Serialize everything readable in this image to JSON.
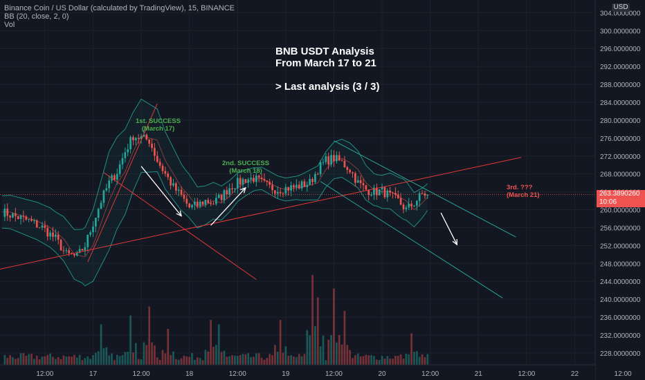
{
  "legend": {
    "line1": "Binance Coin / US Dollar (calculated by TradingView), 15, BINANCE",
    "line2": "BB (20, close, 2, 0)",
    "line3": "Vol"
  },
  "title": {
    "line1": "BNB USDT Analysis",
    "line2": "From March 17 to 21",
    "line3": "> Last analysis (3 / 3)"
  },
  "annotations": {
    "first_line1": "1st. SUCCESS",
    "first_line2": "(March 17)",
    "second_line1": "2nd. SUCCESS",
    "second_line2": "(March 18)",
    "third_line1": "3rd. ???",
    "third_line2": "(March 21)"
  },
  "price_axis": {
    "currency": "USD",
    "current_price": "263.3890260",
    "countdown": "10:06"
  },
  "colors": {
    "background": "#131722",
    "up": "#26a69a",
    "down": "#ef5350",
    "bollinger": "#1f8f85",
    "trendline": "#e53935",
    "channel": "#26a69a",
    "success_text": "#4caf50",
    "arrow": "#ffffff"
  },
  "chart_data": {
    "type": "candlestick",
    "series": [
      {
        "name": "BB (20, close, 2, 0)"
      },
      {
        "name": "Vol"
      }
    ],
    "y_ticks": [
      "304.0000000",
      "300.0000000",
      "296.0000000",
      "292.0000000",
      "288.0000000",
      "284.0000000",
      "280.0000000",
      "276.0000000",
      "272.0000000",
      "268.0000000",
      "264.0000000",
      "260.0000000",
      "256.0000000",
      "252.0000000",
      "248.0000000",
      "244.0000000",
      "240.0000000",
      "236.0000000",
      "232.0000000",
      "228.0000000"
    ],
    "x_ticks": [
      "12:00",
      "17",
      "12:00",
      "18",
      "12:00",
      "19",
      "12:00",
      "20",
      "12:00",
      "21",
      "12:00",
      "22",
      "12:00"
    ],
    "ylim": [
      226.5,
      305.5
    ],
    "price_path": [
      [
        0,
        259.5
      ],
      [
        5,
        258.5
      ],
      [
        10,
        257.5
      ],
      [
        15,
        256
      ],
      [
        20,
        253.5
      ],
      [
        24,
        250
      ],
      [
        28,
        249.5
      ],
      [
        31,
        252
      ],
      [
        34,
        257
      ],
      [
        37,
        262
      ],
      [
        40,
        266
      ],
      [
        43,
        268.5
      ],
      [
        46,
        273
      ],
      [
        49,
        276.5
      ],
      [
        52,
        276
      ],
      [
        55,
        275.5
      ],
      [
        58,
        271
      ],
      [
        61,
        268
      ],
      [
        64,
        265
      ],
      [
        67,
        263
      ],
      [
        70,
        260.5
      ],
      [
        73,
        261
      ],
      [
        76,
        262
      ],
      [
        79,
        261.5
      ],
      [
        82,
        263
      ],
      [
        85,
        265
      ],
      [
        88,
        266
      ],
      [
        91,
        266.8
      ],
      [
        94,
        267
      ],
      [
        97,
        266
      ],
      [
        100,
        265
      ],
      [
        103,
        264.5
      ],
      [
        106,
        264.8
      ],
      [
        109,
        265
      ],
      [
        112,
        265.5
      ],
      [
        115,
        266
      ],
      [
        118,
        269
      ],
      [
        121,
        271
      ],
      [
        124,
        271.5
      ],
      [
        127,
        270.5
      ],
      [
        130,
        269
      ],
      [
        133,
        266
      ],
      [
        136,
        264.5
      ],
      [
        139,
        264
      ],
      [
        142,
        264.2
      ],
      [
        145,
        263
      ],
      [
        148,
        262
      ],
      [
        151,
        260
      ],
      [
        154,
        261.5
      ],
      [
        157,
        263.5
      ],
      [
        159,
        263.39
      ]
    ],
    "candles_per_day": 36,
    "last_candle_index": 159,
    "bb_half_width": [
      [
        0,
        3.6
      ],
      [
        20,
        4.5
      ],
      [
        30,
        6
      ],
      [
        40,
        11
      ],
      [
        48,
        9
      ],
      [
        58,
        7
      ],
      [
        68,
        5
      ],
      [
        80,
        4
      ],
      [
        95,
        2.5
      ],
      [
        110,
        2.6
      ],
      [
        118,
        3.8
      ],
      [
        130,
        4.4
      ],
      [
        140,
        3.5
      ],
      [
        150,
        4.5
      ],
      [
        159,
        3
      ]
    ],
    "volume_spikes": [
      [
        37,
        0.45
      ],
      [
        48,
        0.55
      ],
      [
        55,
        0.65
      ],
      [
        62,
        0.4
      ],
      [
        78,
        0.5
      ],
      [
        81,
        0.45
      ],
      [
        104,
        0.5
      ],
      [
        116,
        1.0
      ],
      [
        118,
        0.75
      ],
      [
        124,
        0.85
      ],
      [
        128,
        0.6
      ],
      [
        153,
        0.35
      ]
    ],
    "trendlines": [
      {
        "name": "support",
        "from": [
          -1,
          246.7
        ],
        "to": [
          194,
          271.7
        ]
      },
      {
        "name": "rally",
        "from": [
          32,
          248.3
        ],
        "to": [
          58,
          283.7
        ]
      },
      {
        "name": "resistance",
        "from": [
          38,
          268.3
        ],
        "to": [
          95,
          244.4
        ]
      },
      {
        "name": "channel-top",
        "from": [
          124,
          275.4
        ],
        "to": [
          192,
          253.9
        ]
      },
      {
        "name": "channel-bottom",
        "from": [
          119,
          266.3
        ],
        "to": [
          187,
          240.3
        ]
      }
    ],
    "arrows": [
      {
        "from": [
          52,
          269.7
        ],
        "to": [
          67,
          258.6
        ]
      },
      {
        "from": [
          78,
          256.5
        ],
        "to": [
          91,
          264.9
        ]
      },
      {
        "from": [
          164,
          259.3
        ],
        "to": [
          170,
          252.2
        ]
      }
    ]
  }
}
